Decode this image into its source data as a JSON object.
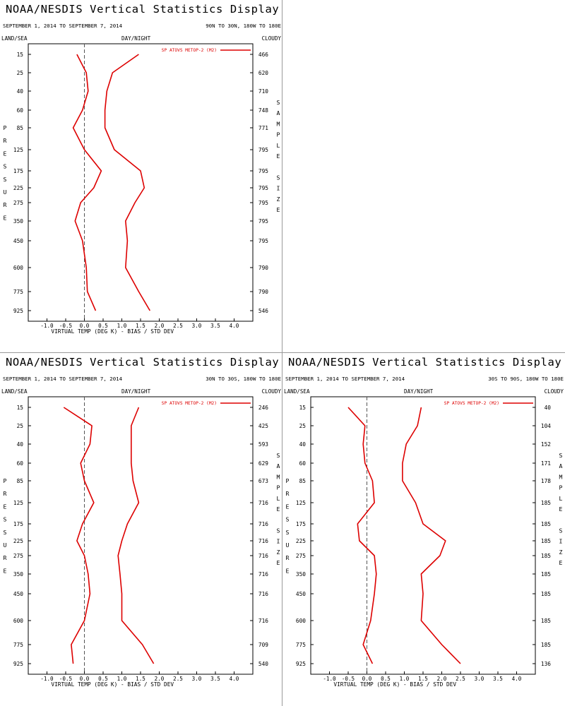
{
  "panels": [
    {
      "title": "NOAA/NESDIS Vertical Statistics Display",
      "date_range": "SEPTEMBER 1, 2014 TO SEPTEMBER 7, 2014",
      "region": "90N TO 30N, 180W TO 180E",
      "header_left": "LAND/SEA",
      "header_center": "DAY/NIGHT",
      "header_right": "CLOUDY"
    },
    {
      "title": "NOAA/NESDIS Vertical Statistics Display",
      "date_range": "SEPTEMBER 1, 2014 TO SEPTEMBER 7, 2014",
      "region": "30N TO 30S, 180W TO 180E",
      "header_left": "LAND/SEA",
      "header_center": "DAY/NIGHT",
      "header_right": "CLOUDY"
    },
    {
      "title": "NOAA/NESDIS Vertical Statistics Display",
      "date_range": "SEPTEMBER 1, 2014 TO SEPTEMBER 7, 2014",
      "region": "30S TO 90S, 180W TO 180E",
      "header_left": "LAND/SEA",
      "header_center": "DAY/NIGHT",
      "header_right": "CLOUDY"
    }
  ],
  "chart_data": [
    {
      "type": "line",
      "title": "NOAA/NESDIS Vertical Statistics Display",
      "region": "90N TO 30N, 180W TO 180E",
      "xlabel": "VIRTUAL TEMP (DEG K) - BIAS / STD DEV",
      "left_label": "PRESSURE",
      "right_label": "SAMPLE SIZE",
      "legend": "SP ATOVS METOP-2 (M2)",
      "legend_position": "top-right",
      "xlim": [
        -1.5,
        4.5
      ],
      "xticks": [
        "-1.0",
        "-0.5",
        "0.0",
        "0.5",
        "1.0",
        "1.5",
        "2.0",
        "2.5",
        "3.0",
        "3.5",
        "4.0"
      ],
      "zero_line": "dashed",
      "pressure": [
        "15",
        "25",
        "40",
        "60",
        "85",
        "125",
        "175",
        "225",
        "275",
        "350",
        "450",
        "600",
        "775",
        "925"
      ],
      "sample_size": [
        "466",
        "620",
        "710",
        "748",
        "771",
        "795",
        "795",
        "795",
        "795",
        "795",
        "795",
        "790",
        "790",
        "546"
      ],
      "series": [
        {
          "stat": "bias",
          "values": [
            -0.2,
            0.05,
            0.1,
            -0.05,
            -0.3,
            0.0,
            0.45,
            0.25,
            -0.1,
            -0.25,
            -0.05,
            0.05,
            0.08,
            0.3
          ]
        },
        {
          "stat": "std_dev",
          "values": [
            1.45,
            0.75,
            0.6,
            0.55,
            0.55,
            0.8,
            1.5,
            1.6,
            1.35,
            1.1,
            1.15,
            1.1,
            1.45,
            1.75
          ]
        }
      ],
      "color": "#dd0000"
    },
    {
      "type": "line",
      "title": "NOAA/NESDIS Vertical Statistics Display",
      "region": "30N TO 30S, 180W TO 180E",
      "xlabel": "VIRTUAL TEMP (DEG K) - BIAS / STD DEV",
      "left_label": "PRESSURE",
      "right_label": "SAMPLE SIZE",
      "legend": "SP ATOVS METOP-2 (M2)",
      "legend_position": "top-right",
      "xlim": [
        -1.5,
        4.5
      ],
      "xticks": [
        "-1.0",
        "-0.5",
        "0.0",
        "0.5",
        "1.0",
        "1.5",
        "2.0",
        "2.5",
        "3.0",
        "3.5",
        "4.0"
      ],
      "zero_line": "dashed",
      "pressure": [
        "15",
        "25",
        "40",
        "60",
        "85",
        "125",
        "175",
        "225",
        "275",
        "350",
        "450",
        "600",
        "775",
        "925"
      ],
      "sample_size": [
        "246",
        "425",
        "593",
        "629",
        "673",
        "716",
        "716",
        "716",
        "716",
        "716",
        "716",
        "716",
        "709",
        "540"
      ],
      "series": [
        {
          "stat": "bias",
          "values": [
            -0.55,
            0.2,
            0.15,
            -0.1,
            0.0,
            0.25,
            -0.05,
            -0.2,
            0.0,
            0.1,
            0.15,
            0.0,
            -0.35,
            -0.3
          ]
        },
        {
          "stat": "std_dev",
          "values": [
            1.45,
            1.25,
            1.25,
            1.25,
            1.3,
            1.45,
            1.15,
            1.0,
            0.9,
            0.95,
            1.0,
            1.0,
            1.55,
            1.85
          ]
        }
      ],
      "color": "#dd0000"
    },
    {
      "type": "line",
      "title": "NOAA/NESDIS Vertical Statistics Display",
      "region": "30S TO 90S, 180W TO 180E",
      "xlabel": "VIRTUAL TEMP (DEG K) - BIAS / STD DEV",
      "left_label": "PRESSURE",
      "right_label": "SAMPLE SIZE",
      "legend": "SP ATOVS METOP-2 (M2)",
      "legend_position": "top-right",
      "xlim": [
        -1.5,
        4.5
      ],
      "xticks": [
        "-1.0",
        "-0.5",
        "0.0",
        "0.5",
        "1.0",
        "1.5",
        "2.0",
        "2.5",
        "3.0",
        "3.5",
        "4.0"
      ],
      "zero_line": "dashed",
      "pressure": [
        "15",
        "25",
        "40",
        "60",
        "85",
        "125",
        "175",
        "225",
        "275",
        "350",
        "450",
        "600",
        "775",
        "925"
      ],
      "sample_size": [
        "40",
        "104",
        "152",
        "171",
        "178",
        "185",
        "185",
        "185",
        "185",
        "185",
        "185",
        "185",
        "185",
        "136"
      ],
      "series": [
        {
          "stat": "bias",
          "values": [
            -0.5,
            -0.05,
            -0.1,
            -0.05,
            0.15,
            0.2,
            -0.25,
            -0.2,
            0.2,
            0.25,
            0.2,
            0.1,
            -0.1,
            0.15
          ]
        },
        {
          "stat": "std_dev",
          "values": [
            1.45,
            1.35,
            1.05,
            0.95,
            0.95,
            1.3,
            1.5,
            2.1,
            1.95,
            1.45,
            1.5,
            1.45,
            2.0,
            2.5
          ]
        }
      ],
      "color": "#dd0000"
    }
  ]
}
